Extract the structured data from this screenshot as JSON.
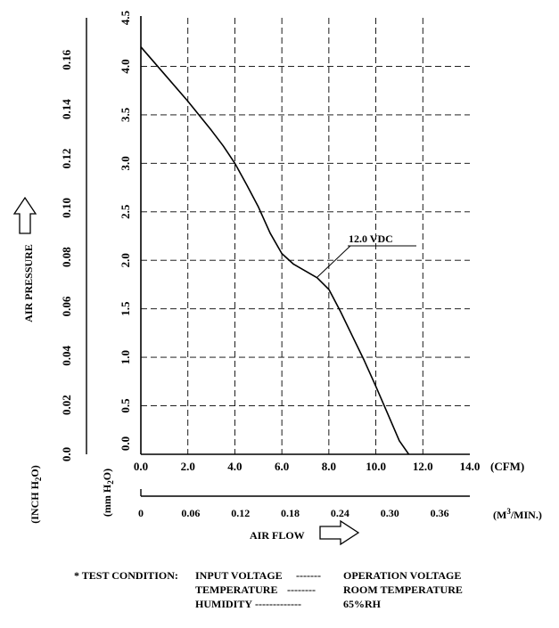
{
  "chart_data": {
    "type": "line",
    "series": [
      {
        "name": "",
        "x": [
          0.0,
          1.0,
          2.0,
          3.0,
          3.5,
          4.0,
          4.5,
          5.0,
          5.5,
          6.0,
          6.5,
          7.0,
          7.5,
          8.0,
          8.5,
          9.0,
          9.5,
          10.0,
          10.5,
          11.0,
          11.4
        ],
        "y": [
          4.2,
          3.92,
          3.64,
          3.34,
          3.18,
          3.0,
          2.78,
          2.55,
          2.28,
          2.07,
          1.96,
          1.89,
          1.82,
          1.7,
          1.47,
          1.22,
          0.97,
          0.7,
          0.42,
          0.14,
          0.0
        ]
      }
    ],
    "curve_label": "12.0 VDC",
    "xlim": [
      0,
      14
    ],
    "ylim": [
      0,
      4.5
    ],
    "grid": true,
    "x_ticks_cfm": [
      "0.0",
      "2.0",
      "4.0",
      "6.0",
      "8.0",
      "10.0",
      "12.0",
      "14.0"
    ],
    "x_unit_cfm": "(CFM)",
    "x_ticks_m3": [
      "0",
      "0.06",
      "0.12",
      "0.18",
      "0.24",
      "0.30",
      "0.36"
    ],
    "x_unit_m3": "(M",
    "x_unit_m3_sup": "3",
    "x_unit_m3_tail": "/MIN.)",
    "x_label": "AIR FLOW",
    "y_ticks_mm": [
      "0.0",
      "0.5",
      "1.0",
      "1.5",
      "2.0",
      "2.5",
      "3.0",
      "3.5",
      "4.0",
      "4.5"
    ],
    "y_unit_mm": "(mm H",
    "y_unit_mm_sub": "2",
    "y_unit_mm_tail": "O)",
    "y_ticks_inch": [
      "0.0",
      "0.02",
      "0.04",
      "0.06",
      "0.08",
      "0.10",
      "0.12",
      "0.14",
      "0.16"
    ],
    "y_unit_inch": "(INCH H",
    "y_unit_inch_sub": "2",
    "y_unit_inch_tail": "O)",
    "y_label": "AIR PRESSURE"
  },
  "test_condition": {
    "heading": "* TEST CONDITION:",
    "rows": [
      {
        "name": "INPUT VOLTAGE",
        "leader": "-------",
        "value": "OPERATION VOLTAGE"
      },
      {
        "name": "TEMPERATURE",
        "leader": "--------",
        "value": "ROOM TEMPERATURE"
      },
      {
        "name": "HUMIDITY",
        "leader": "-------------",
        "value": "65%RH"
      }
    ]
  }
}
